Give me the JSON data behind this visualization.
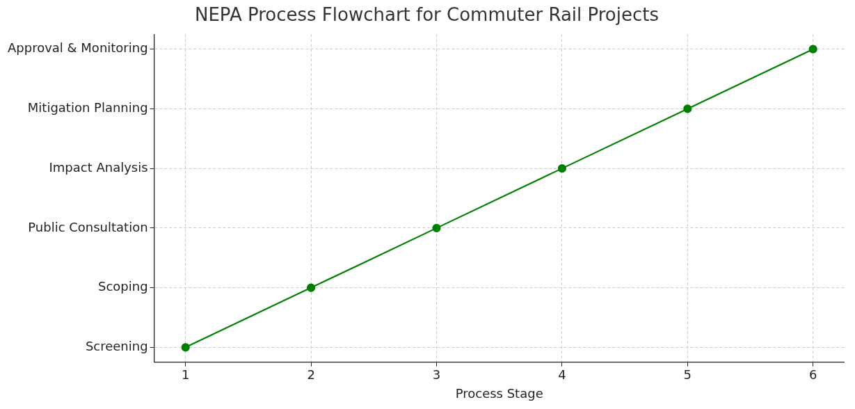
{
  "chart_data": {
    "type": "line",
    "orientation": "horizontal",
    "title": "NEPA Process Flowchart for Commuter Rail Projects",
    "xlabel": "Process Stage",
    "categories": [
      "Approval & Monitoring",
      "Mitigation Planning",
      "Impact Analysis",
      "Public Consultation",
      "Scoping",
      "Screening"
    ],
    "series": [
      {
        "color": "#008000",
        "values": [
          6,
          5,
          4,
          3,
          2,
          1
        ]
      }
    ],
    "xlim": [
      0.75,
      6.25
    ],
    "xticks": [
      1,
      2,
      3,
      4,
      5,
      6
    ],
    "grid": true,
    "marker": "circle",
    "line_style": "solid",
    "legend": false
  }
}
